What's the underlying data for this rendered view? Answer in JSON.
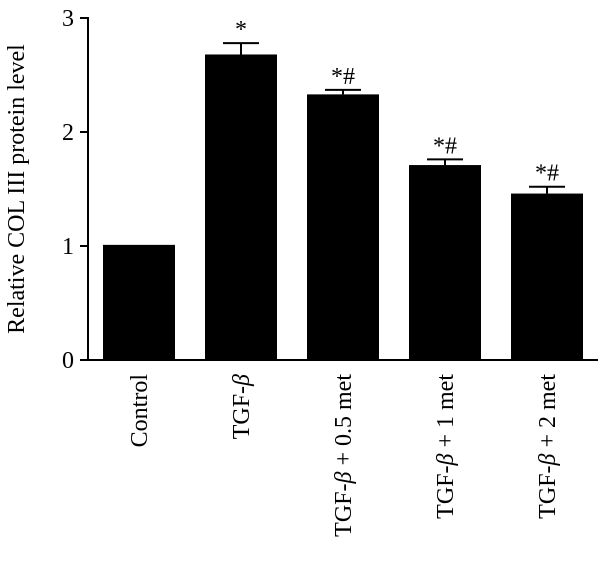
{
  "chart_data": {
    "type": "bar",
    "title": "",
    "xlabel": "",
    "ylabel": "Relative COL III protein level",
    "ylim": [
      0,
      3
    ],
    "yticks": [
      0,
      1,
      2,
      3
    ],
    "categories": [
      {
        "pre": "Control",
        "ital": "",
        "post": ""
      },
      {
        "pre": "TGF-",
        "ital": "β",
        "post": ""
      },
      {
        "pre": "TGF-",
        "ital": "β",
        "post": " + 0.5 met"
      },
      {
        "pre": "TGF-",
        "ital": "β",
        "post": " + 1 met"
      },
      {
        "pre": "TGF-",
        "ital": "β",
        "post": " + 2 met"
      }
    ],
    "values": [
      1.01,
      2.68,
      2.33,
      1.71,
      1.46
    ],
    "errors": [
      0.0,
      0.1,
      0.04,
      0.05,
      0.06
    ],
    "significance": [
      "",
      "*",
      "*#",
      "*#",
      "*#"
    ],
    "grid": false,
    "bar_color": "#000000"
  }
}
